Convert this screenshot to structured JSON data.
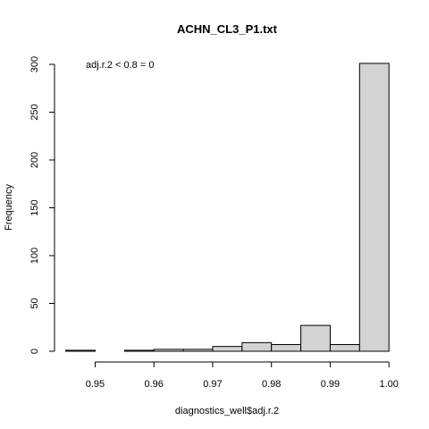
{
  "chart_data": {
    "type": "bar",
    "title": "ACHN_CL3_P1.txt",
    "xlabel": "diagnostics_well$adj.r.2",
    "ylabel": "Frequency",
    "annotation": "adj.r.2 < 0.8 = 0",
    "xlim": [
      0.945,
      1.0
    ],
    "ylim": [
      0,
      300
    ],
    "bin_width": 0.005,
    "bins": [
      {
        "start": 0.945,
        "end": 0.95,
        "count": 1
      },
      {
        "start": 0.95,
        "end": 0.955,
        "count": 0
      },
      {
        "start": 0.955,
        "end": 0.96,
        "count": 1
      },
      {
        "start": 0.96,
        "end": 0.965,
        "count": 2
      },
      {
        "start": 0.965,
        "end": 0.97,
        "count": 2
      },
      {
        "start": 0.97,
        "end": 0.975,
        "count": 5
      },
      {
        "start": 0.975,
        "end": 0.98,
        "count": 9
      },
      {
        "start": 0.98,
        "end": 0.985,
        "count": 7
      },
      {
        "start": 0.985,
        "end": 0.99,
        "count": 27
      },
      {
        "start": 0.99,
        "end": 0.995,
        "count": 7
      },
      {
        "start": 0.995,
        "end": 1.0,
        "count": 301
      }
    ],
    "x_ticks": [
      0.95,
      0.96,
      0.97,
      0.98,
      0.99,
      1.0
    ],
    "x_tick_labels": [
      "0.95",
      "0.96",
      "0.97",
      "0.98",
      "0.99",
      "1.00"
    ],
    "y_ticks": [
      0,
      50,
      100,
      150,
      200,
      250,
      300
    ],
    "y_tick_labels": [
      "0",
      "50",
      "100",
      "150",
      "200",
      "250",
      "300"
    ],
    "bar_fill": "#d3d3d3",
    "bar_stroke": "#000000",
    "grid": false
  }
}
